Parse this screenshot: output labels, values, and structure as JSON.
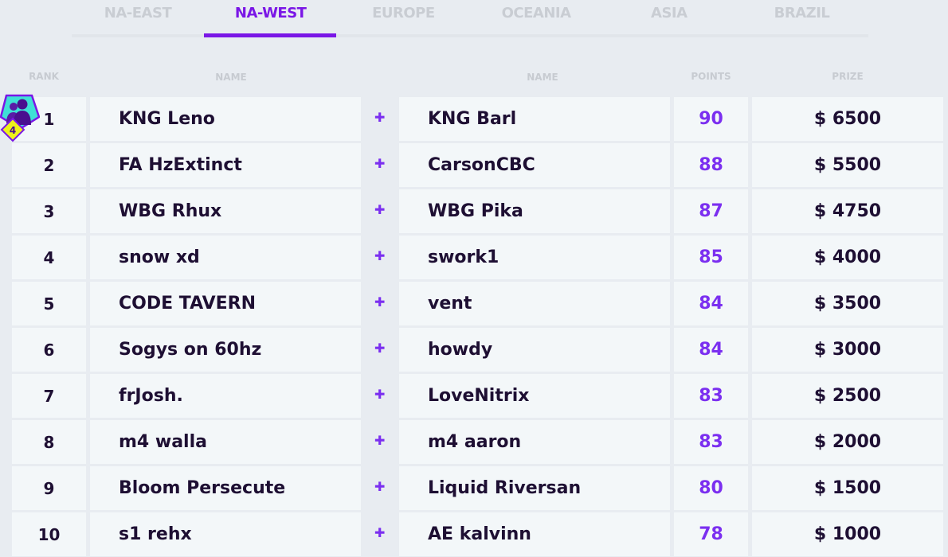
{
  "tabs": [
    {
      "label": "NA-EAST"
    },
    {
      "label": "NA-WEST",
      "active": true
    },
    {
      "label": "EUROPE"
    },
    {
      "label": "OCEANIA"
    },
    {
      "label": "ASIA"
    },
    {
      "label": "BRAZIL"
    }
  ],
  "headers": {
    "rank": "RANK",
    "name1": "NAME",
    "name2": "NAME",
    "points": "POINTS",
    "prize": "PRIZE"
  },
  "badge": {
    "icon": "duo-team-badge-icon",
    "number": "4"
  },
  "colors": {
    "accent": "#7a16e6",
    "points": "#7b2ff0",
    "text": "#1e0f33"
  },
  "rows": [
    {
      "rank": "1",
      "p1": "KNG Leno",
      "p2": "KNG Barl",
      "points": "90",
      "prize": "$ 6500"
    },
    {
      "rank": "2",
      "p1": "FA HzExtinct",
      "p2": "CarsonCBC",
      "points": "88",
      "prize": "$ 5500"
    },
    {
      "rank": "3",
      "p1": "WBG Rhux",
      "p2": "WBG Pika",
      "points": "87",
      "prize": "$ 4750"
    },
    {
      "rank": "4",
      "p1": "snow xd",
      "p2": "swork1",
      "points": "85",
      "prize": "$ 4000"
    },
    {
      "rank": "5",
      "p1": "CODE TAVERN",
      "p2": "vent",
      "points": "84",
      "prize": "$ 3500"
    },
    {
      "rank": "6",
      "p1": "Sogys on 60hz",
      "p2": "howdy",
      "points": "84",
      "prize": "$ 3000"
    },
    {
      "rank": "7",
      "p1": "frJosh.",
      "p2": "LoveNitrix",
      "points": "83",
      "prize": "$ 2500"
    },
    {
      "rank": "8",
      "p1": "m4 walla",
      "p2": "m4 aaron",
      "points": "83",
      "prize": "$ 2000"
    },
    {
      "rank": "9",
      "p1": "Bloom Persecute",
      "p2": "Liquid Riversan",
      "points": "80",
      "prize": "$ 1500"
    },
    {
      "rank": "10",
      "p1": "s1 rehx",
      "p2": "AE kalvinn",
      "points": "78",
      "prize": "$ 1000"
    }
  ]
}
